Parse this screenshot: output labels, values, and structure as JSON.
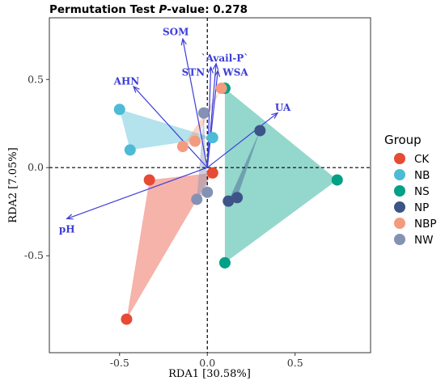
{
  "chart_data": {
    "type": "scatter",
    "title_prefix": "Permutation Test ",
    "title_italic": "P",
    "title_suffix": "-value: 0.278",
    "xlabel": "RDA1 [30.58%]",
    "ylabel": "RDA2 [7.05%]",
    "xlim": [
      -0.9,
      0.93
    ],
    "ylim": [
      -1.05,
      0.85
    ],
    "xticks": [
      -0.5,
      0.0,
      0.5
    ],
    "xtick_labels": [
      "-0.5",
      "0.0",
      "0.5"
    ],
    "yticks": [
      -0.5,
      0.0,
      0.5
    ],
    "ytick_labels": [
      "-0.5",
      "0.0",
      "0.5"
    ],
    "legend_title": "Group",
    "legend_position": "right",
    "series": [
      {
        "name": "CK",
        "color": "#e64b35",
        "points": [
          [
            -0.33,
            -0.07
          ],
          [
            0.03,
            -0.03
          ],
          [
            -0.46,
            -0.86
          ]
        ]
      },
      {
        "name": "NB",
        "color": "#4dbbd5",
        "points": [
          [
            -0.5,
            0.33
          ],
          [
            -0.44,
            0.1
          ],
          [
            0.03,
            0.17
          ]
        ]
      },
      {
        "name": "NS",
        "color": "#00a087",
        "points": [
          [
            0.1,
            0.45
          ],
          [
            0.74,
            -0.07
          ],
          [
            0.1,
            -0.54
          ]
        ]
      },
      {
        "name": "NP",
        "color": "#3c5488",
        "points": [
          [
            0.3,
            0.21
          ],
          [
            0.17,
            -0.17
          ],
          [
            0.12,
            -0.19
          ]
        ]
      },
      {
        "name": "NBP",
        "color": "#f39b7f",
        "points": [
          [
            0.08,
            0.45
          ],
          [
            -0.14,
            0.12
          ],
          [
            -0.07,
            0.15
          ]
        ]
      },
      {
        "name": "NW",
        "color": "#8491b4",
        "points": [
          [
            -0.02,
            0.31
          ],
          [
            0.0,
            -0.14
          ],
          [
            -0.06,
            -0.18
          ]
        ]
      }
    ],
    "hull_order": [
      {
        "series": 0,
        "vertices": [
          [
            -0.33,
            -0.07
          ],
          [
            0.03,
            -0.03
          ],
          [
            -0.46,
            -0.86
          ]
        ]
      },
      {
        "series": 1,
        "vertices": [
          [
            -0.5,
            0.33
          ],
          [
            0.03,
            0.17
          ],
          [
            -0.44,
            0.1
          ]
        ]
      },
      {
        "series": 2,
        "vertices": [
          [
            0.1,
            0.45
          ],
          [
            0.74,
            -0.07
          ],
          [
            0.1,
            -0.54
          ]
        ]
      },
      {
        "series": 3,
        "vertices": [
          [
            0.3,
            0.21
          ],
          [
            0.17,
            -0.17
          ],
          [
            0.12,
            -0.19
          ]
        ]
      },
      {
        "series": 4,
        "vertices": [
          [
            0.08,
            0.45
          ],
          [
            -0.07,
            0.15
          ],
          [
            -0.14,
            0.12
          ]
        ]
      },
      {
        "series": 5,
        "vertices": [
          [
            -0.02,
            0.31
          ],
          [
            0.0,
            -0.14
          ],
          [
            -0.06,
            -0.18
          ]
        ]
      }
    ],
    "vectors": [
      {
        "label": "SOM",
        "end": [
          -0.14,
          0.73
        ],
        "label_at": [
          -0.18,
          0.77
        ]
      },
      {
        "label": "AHN",
        "end": [
          -0.42,
          0.46
        ],
        "label_at": [
          -0.46,
          0.49
        ]
      },
      {
        "label": "STN",
        "end": [
          0.02,
          0.57
        ],
        "label_at": [
          -0.08,
          0.54
        ]
      },
      {
        "label": "`Avail-P`",
        "end": [
          0.05,
          0.59
        ],
        "label_at": [
          0.1,
          0.62
        ]
      },
      {
        "label": "WSA",
        "end": [
          0.06,
          0.55
        ],
        "label_at": [
          0.16,
          0.54
        ]
      },
      {
        "label": "UA",
        "end": [
          0.4,
          0.31
        ],
        "label_at": [
          0.43,
          0.34
        ]
      },
      {
        "label": "pH",
        "end": [
          -0.8,
          -0.29
        ],
        "label_at": [
          -0.8,
          -0.35
        ]
      }
    ],
    "vector_color": "#3c3cd9",
    "reference_lines": {
      "x": 0,
      "y": 0,
      "style": "dashed"
    }
  }
}
